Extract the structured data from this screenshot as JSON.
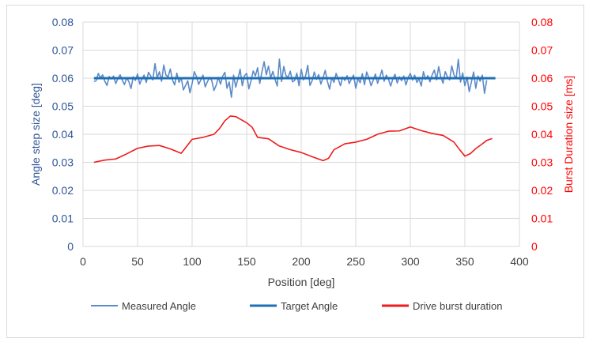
{
  "chart_data": {
    "type": "line",
    "xlabel": "Position [deg]",
    "ylabel": "Angle step size [deg]",
    "y2label": "Burst Duration size [ms]",
    "xlim": [
      0,
      400
    ],
    "ylim": [
      0,
      0.08
    ],
    "y2lim": [
      0,
      0.08
    ],
    "x_ticks": [
      "0",
      "50",
      "100",
      "150",
      "200",
      "250",
      "300",
      "350",
      "400"
    ],
    "y_ticks": [
      "0",
      "0.01",
      "0.02",
      "0.03",
      "0.04",
      "0.05",
      "0.06",
      "0.07",
      "0.08"
    ],
    "y2_ticks": [
      "0",
      "0.01",
      "0.02",
      "0.03",
      "0.04",
      "0.05",
      "0.06",
      "0.07",
      "0.08"
    ],
    "grid": true,
    "legend_position": "bottom",
    "colors": {
      "measured": "#5b8ac6",
      "target": "#1f6fb5",
      "burst": "#ee1c1c",
      "grid": "#d9d9d9",
      "axis_left": "#2f5597",
      "axis_right": "#ff0000"
    },
    "series": [
      {
        "name": "Measured Angle",
        "axis": "left",
        "x": [
          10,
          12,
          14,
          16,
          18,
          20,
          22,
          24,
          26,
          28,
          30,
          32,
          34,
          36,
          38,
          40,
          42,
          44,
          46,
          48,
          50,
          52,
          54,
          56,
          58,
          60,
          62,
          64,
          66,
          68,
          70,
          72,
          74,
          76,
          78,
          80,
          82,
          84,
          86,
          88,
          90,
          92,
          94,
          96,
          98,
          100,
          102,
          104,
          106,
          108,
          110,
          112,
          114,
          116,
          118,
          120,
          122,
          124,
          126,
          128,
          130,
          132,
          134,
          136,
          138,
          140,
          142,
          144,
          146,
          148,
          150,
          152,
          154,
          156,
          158,
          160,
          162,
          164,
          166,
          168,
          170,
          172,
          174,
          176,
          178,
          180,
          182,
          184,
          186,
          188,
          190,
          192,
          194,
          196,
          198,
          200,
          202,
          204,
          206,
          208,
          210,
          212,
          214,
          216,
          218,
          220,
          222,
          224,
          226,
          228,
          230,
          232,
          234,
          236,
          238,
          240,
          242,
          244,
          246,
          248,
          250,
          252,
          254,
          256,
          258,
          260,
          262,
          264,
          266,
          268,
          270,
          272,
          274,
          276,
          278,
          280,
          282,
          284,
          286,
          288,
          290,
          292,
          294,
          296,
          298,
          300,
          302,
          304,
          306,
          308,
          310,
          312,
          314,
          316,
          318,
          320,
          322,
          324,
          326,
          328,
          330,
          332,
          334,
          336,
          338,
          340,
          342,
          344,
          346,
          348,
          350,
          352,
          354,
          356,
          358,
          360,
          362,
          364,
          366,
          368,
          370
        ],
        "values": [
          0.0588,
          0.0591,
          0.0617,
          0.0601,
          0.0612,
          0.0589,
          0.0574,
          0.0606,
          0.0597,
          0.0608,
          0.0581,
          0.0599,
          0.0612,
          0.0593,
          0.0577,
          0.0601,
          0.0588,
          0.0563,
          0.0605,
          0.0592,
          0.0615,
          0.0579,
          0.0598,
          0.0611,
          0.0585,
          0.0621,
          0.0608,
          0.0594,
          0.0652,
          0.0601,
          0.0623,
          0.0589,
          0.0647,
          0.0611,
          0.0605,
          0.0633,
          0.0594,
          0.0576,
          0.0618,
          0.0585,
          0.0602,
          0.0558,
          0.0574,
          0.0591,
          0.0548,
          0.0581,
          0.0623,
          0.0606,
          0.0578,
          0.0594,
          0.0611,
          0.0569,
          0.0587,
          0.0603,
          0.0592,
          0.0556,
          0.0574,
          0.0603,
          0.0579,
          0.0607,
          0.0621,
          0.0564,
          0.0587,
          0.0532,
          0.0611,
          0.0568,
          0.0598,
          0.0632,
          0.0573,
          0.0609,
          0.0617,
          0.0562,
          0.0591,
          0.0626,
          0.0608,
          0.0637,
          0.0581,
          0.0623,
          0.0659,
          0.0612,
          0.0643,
          0.0601,
          0.0624,
          0.0596,
          0.0572,
          0.0668,
          0.0588,
          0.0642,
          0.0609,
          0.0604,
          0.0625,
          0.0587,
          0.0592,
          0.0618,
          0.0573,
          0.0632,
          0.0594,
          0.0608,
          0.0646,
          0.0574,
          0.0591,
          0.0622,
          0.0596,
          0.0613,
          0.0579,
          0.0601,
          0.0628,
          0.0589,
          0.0561,
          0.0602,
          0.0585,
          0.0617,
          0.0596,
          0.0573,
          0.0604,
          0.0592,
          0.0609,
          0.0581,
          0.0597,
          0.0611,
          0.0564,
          0.0598,
          0.0584,
          0.0616,
          0.0577,
          0.0622,
          0.0601,
          0.0573,
          0.0593,
          0.0615,
          0.0582,
          0.0604,
          0.0629,
          0.0589,
          0.0611,
          0.0596,
          0.0572,
          0.0598,
          0.0614,
          0.0583,
          0.0605,
          0.0591,
          0.0608,
          0.0576,
          0.0602,
          0.0617,
          0.0593,
          0.0611,
          0.0585,
          0.0598,
          0.0572,
          0.0623,
          0.0596,
          0.0609,
          0.0587,
          0.0612,
          0.0629,
          0.0594,
          0.0641,
          0.0603,
          0.0582,
          0.0623,
          0.0605,
          0.0594,
          0.0644,
          0.0612,
          0.0598,
          0.0667,
          0.0586,
          0.0619,
          0.0573,
          0.0604,
          0.0552,
          0.0587,
          0.0622,
          0.0564,
          0.0608,
          0.0589,
          0.0611,
          0.0546,
          0.0593
        ]
      },
      {
        "name": "Target Angle",
        "axis": "left",
        "x": [
          10,
          378
        ],
        "values": [
          0.06,
          0.06
        ]
      },
      {
        "name": "Drive burst duration",
        "axis": "right",
        "x": [
          10,
          20,
          30,
          40,
          50,
          60,
          70,
          80,
          90,
          100,
          110,
          120,
          125,
          130,
          135,
          140,
          145,
          150,
          155,
          160,
          170,
          180,
          190,
          200,
          210,
          220,
          225,
          230,
          240,
          250,
          260,
          270,
          280,
          290,
          300,
          310,
          320,
          330,
          340,
          345,
          350,
          355,
          360,
          365,
          370,
          375
        ],
        "values": [
          0.03,
          0.0308,
          0.0312,
          0.033,
          0.035,
          0.0358,
          0.036,
          0.0348,
          0.0332,
          0.0382,
          0.0389,
          0.04,
          0.042,
          0.0448,
          0.0465,
          0.0463,
          0.0452,
          0.0441,
          0.0425,
          0.0389,
          0.0384,
          0.0358,
          0.0345,
          0.0335,
          0.032,
          0.0306,
          0.0314,
          0.0345,
          0.0366,
          0.0372,
          0.0382,
          0.04,
          0.0411,
          0.0412,
          0.0426,
          0.0413,
          0.0403,
          0.0396,
          0.0372,
          0.0346,
          0.0322,
          0.0331,
          0.0349,
          0.0363,
          0.0378,
          0.0385
        ]
      }
    ]
  }
}
